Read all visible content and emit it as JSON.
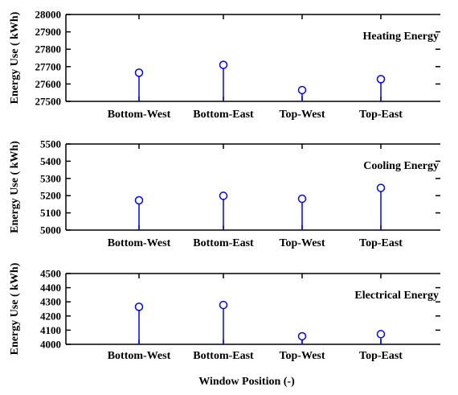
{
  "chart_data": [
    {
      "type": "stem",
      "title": "Heating Energy",
      "ylabel": "Energy Use ( kWh)",
      "xlabel": "",
      "categories": [
        "Bottom-West",
        "Bottom-East",
        "Top-West",
        "Top-East"
      ],
      "values": [
        27665,
        27710,
        27565,
        27628
      ],
      "ylim": [
        27500,
        28000
      ],
      "yticks": [
        27500,
        27600,
        27700,
        27800,
        27900,
        28000
      ],
      "stem_color": "#0000ff",
      "marker": "open-circle",
      "grid": false
    },
    {
      "type": "stem",
      "title": "Cooling Energy",
      "ylabel": "Energy Use ( kWh)",
      "xlabel": "",
      "categories": [
        "Bottom-West",
        "Bottom-East",
        "Top-West",
        "Top-East"
      ],
      "values": [
        5173,
        5199,
        5182,
        5245
      ],
      "ylim": [
        5000,
        5500
      ],
      "yticks": [
        5000,
        5100,
        5200,
        5300,
        5400,
        5500
      ],
      "stem_color": "#0000ff",
      "marker": "open-circle",
      "grid": false
    },
    {
      "type": "stem",
      "title": "Electrical Energy",
      "ylabel": "Energy Use ( kWh)",
      "xlabel": "Window Position (-)",
      "categories": [
        "Bottom-West",
        "Bottom-East",
        "Top-West",
        "Top-East"
      ],
      "values": [
        4265,
        4278,
        4057,
        4072
      ],
      "ylim": [
        4000,
        4500
      ],
      "yticks": [
        4000,
        4100,
        4200,
        4300,
        4400,
        4500
      ],
      "stem_color": "#0000ff",
      "marker": "open-circle",
      "grid": false
    }
  ]
}
